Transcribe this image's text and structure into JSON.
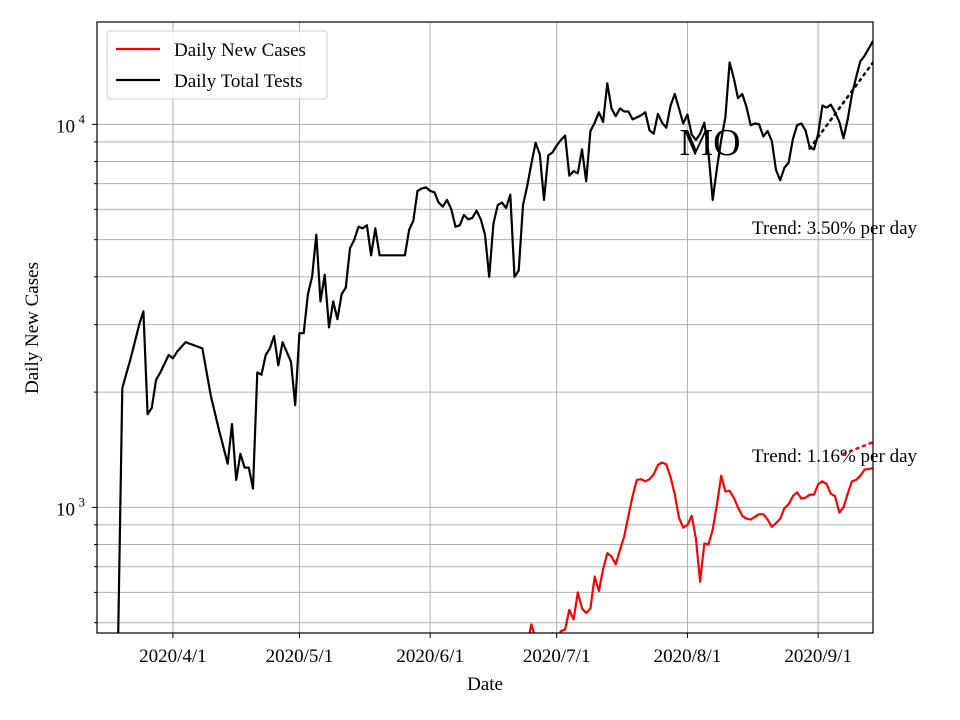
{
  "chart_data": {
    "type": "line",
    "title": "",
    "xlabel": "Date",
    "ylabel": "Daily New Cases",
    "yscale": "log",
    "ylim": [
      470,
      18500
    ],
    "xlim": [
      "2020-03-14",
      "2020-09-14"
    ],
    "x_ticks": [
      "2020/4/1",
      "2020/5/1",
      "2020/6/1",
      "2020/7/1",
      "2020/8/1",
      "2020/9/1"
    ],
    "y_ticks": [
      {
        "value": 1000,
        "base": "10",
        "exp": "3"
      },
      {
        "value": 10000,
        "base": "10",
        "exp": "4"
      }
    ],
    "grid": true,
    "legend_position": "top-left",
    "annotation_state": "MO",
    "series": [
      {
        "name": "Daily New Cases",
        "color": "#ff0000",
        "points": [
          [
            "2020-06-24",
            440
          ],
          [
            "2020-06-25",
            495
          ],
          [
            "2020-06-26",
            455
          ],
          [
            "2020-06-27",
            430
          ],
          [
            "2020-06-28",
            450
          ],
          [
            "2020-06-29",
            460
          ],
          [
            "2020-06-30",
            470
          ],
          [
            "2020-07-01",
            455
          ],
          [
            "2020-07-02",
            475
          ],
          [
            "2020-07-03",
            480
          ],
          [
            "2020-07-04",
            540
          ],
          [
            "2020-07-05",
            510
          ],
          [
            "2020-07-06",
            600
          ],
          [
            "2020-07-07",
            545
          ],
          [
            "2020-07-08",
            530
          ],
          [
            "2020-07-09",
            545
          ],
          [
            "2020-07-10",
            660
          ],
          [
            "2020-07-11",
            605
          ],
          [
            "2020-07-12",
            690
          ],
          [
            "2020-07-13",
            760
          ],
          [
            "2020-07-14",
            745
          ],
          [
            "2020-07-15",
            710
          ],
          [
            "2020-07-16",
            775
          ],
          [
            "2020-07-17",
            840
          ],
          [
            "2020-07-18",
            950
          ],
          [
            "2020-07-19",
            1070
          ],
          [
            "2020-07-20",
            1180
          ],
          [
            "2020-07-21",
            1185
          ],
          [
            "2020-07-22",
            1170
          ],
          [
            "2020-07-23",
            1185
          ],
          [
            "2020-07-24",
            1220
          ],
          [
            "2020-07-25",
            1290
          ],
          [
            "2020-07-26",
            1310
          ],
          [
            "2020-07-27",
            1295
          ],
          [
            "2020-07-28",
            1200
          ],
          [
            "2020-07-29",
            1080
          ],
          [
            "2020-07-30",
            940
          ],
          [
            "2020-07-31",
            885
          ],
          [
            "2020-08-01",
            900
          ],
          [
            "2020-08-02",
            950
          ],
          [
            "2020-08-03",
            830
          ],
          [
            "2020-08-04",
            640
          ],
          [
            "2020-08-05",
            805
          ],
          [
            "2020-08-06",
            800
          ],
          [
            "2020-08-07",
            875
          ],
          [
            "2020-08-08",
            1020
          ],
          [
            "2020-08-09",
            1210
          ],
          [
            "2020-08-10",
            1100
          ],
          [
            "2020-08-11",
            1105
          ],
          [
            "2020-08-12",
            1060
          ],
          [
            "2020-08-13",
            1000
          ],
          [
            "2020-08-14",
            950
          ],
          [
            "2020-08-15",
            935
          ],
          [
            "2020-08-16",
            930
          ],
          [
            "2020-08-17",
            945
          ],
          [
            "2020-08-18",
            960
          ],
          [
            "2020-08-19",
            960
          ],
          [
            "2020-08-20",
            930
          ],
          [
            "2020-08-21",
            890
          ],
          [
            "2020-08-22",
            910
          ],
          [
            "2020-08-23",
            935
          ],
          [
            "2020-08-24",
            995
          ],
          [
            "2020-08-25",
            1020
          ],
          [
            "2020-08-26",
            1070
          ],
          [
            "2020-08-27",
            1095
          ],
          [
            "2020-08-28",
            1055
          ],
          [
            "2020-08-29",
            1060
          ],
          [
            "2020-08-30",
            1080
          ],
          [
            "2020-08-31",
            1080
          ],
          [
            "2020-09-01",
            1150
          ],
          [
            "2020-09-02",
            1170
          ],
          [
            "2020-09-03",
            1150
          ],
          [
            "2020-09-04",
            1085
          ],
          [
            "2020-09-05",
            1070
          ],
          [
            "2020-09-06",
            970
          ],
          [
            "2020-09-07",
            1000
          ],
          [
            "2020-09-08",
            1085
          ],
          [
            "2020-09-09",
            1170
          ],
          [
            "2020-09-10",
            1180
          ],
          [
            "2020-09-11",
            1210
          ],
          [
            "2020-09-12",
            1255
          ],
          [
            "2020-09-14",
            1265
          ]
        ]
      },
      {
        "name": "Daily Total Tests",
        "color": "#000000",
        "points": [
          [
            "2020-03-19",
            450
          ],
          [
            "2020-03-20",
            2050
          ],
          [
            "2020-03-22",
            2450
          ],
          [
            "2020-03-24",
            3000
          ],
          [
            "2020-03-25",
            3250
          ],
          [
            "2020-03-26",
            1750
          ],
          [
            "2020-03-27",
            1820
          ],
          [
            "2020-03-28",
            2150
          ],
          [
            "2020-03-29",
            2250
          ],
          [
            "2020-03-31",
            2500
          ],
          [
            "2020-04-01",
            2450
          ],
          [
            "2020-04-02",
            2550
          ],
          [
            "2020-04-04",
            2700
          ],
          [
            "2020-04-08",
            2600
          ],
          [
            "2020-04-10",
            1950
          ],
          [
            "2020-04-12",
            1580
          ],
          [
            "2020-04-14",
            1300
          ],
          [
            "2020-04-15",
            1650
          ],
          [
            "2020-04-16",
            1180
          ],
          [
            "2020-04-17",
            1380
          ],
          [
            "2020-04-18",
            1270
          ],
          [
            "2020-04-19",
            1270
          ],
          [
            "2020-04-20",
            1120
          ],
          [
            "2020-04-21",
            2250
          ],
          [
            "2020-04-22",
            2220
          ],
          [
            "2020-04-23",
            2500
          ],
          [
            "2020-04-24",
            2600
          ],
          [
            "2020-04-25",
            2800
          ],
          [
            "2020-04-26",
            2350
          ],
          [
            "2020-04-27",
            2700
          ],
          [
            "2020-04-29",
            2400
          ],
          [
            "2020-04-30",
            1850
          ],
          [
            "2020-05-01",
            2850
          ],
          [
            "2020-05-02",
            2850
          ],
          [
            "2020-05-03",
            3600
          ],
          [
            "2020-05-04",
            4000
          ],
          [
            "2020-05-05",
            5150
          ],
          [
            "2020-05-06",
            3450
          ],
          [
            "2020-05-07",
            4050
          ],
          [
            "2020-05-08",
            2950
          ],
          [
            "2020-05-09",
            3450
          ],
          [
            "2020-05-10",
            3100
          ],
          [
            "2020-05-11",
            3600
          ],
          [
            "2020-05-12",
            3750
          ],
          [
            "2020-05-13",
            4750
          ],
          [
            "2020-05-14",
            5000
          ],
          [
            "2020-05-15",
            5400
          ],
          [
            "2020-05-16",
            5350
          ],
          [
            "2020-05-17",
            5450
          ],
          [
            "2020-05-18",
            4550
          ],
          [
            "2020-05-19",
            5350
          ],
          [
            "2020-05-20",
            4550
          ],
          [
            "2020-05-26",
            4550
          ],
          [
            "2020-05-27",
            5300
          ],
          [
            "2020-05-28",
            5600
          ],
          [
            "2020-05-29",
            6700
          ],
          [
            "2020-05-30",
            6800
          ],
          [
            "2020-05-31",
            6850
          ],
          [
            "2020-06-01",
            6700
          ],
          [
            "2020-06-02",
            6650
          ],
          [
            "2020-06-03",
            6250
          ],
          [
            "2020-06-04",
            6100
          ],
          [
            "2020-06-05",
            6350
          ],
          [
            "2020-06-06",
            6000
          ],
          [
            "2020-06-07",
            5400
          ],
          [
            "2020-06-08",
            5450
          ],
          [
            "2020-06-09",
            5800
          ],
          [
            "2020-06-10",
            5650
          ],
          [
            "2020-06-11",
            5700
          ],
          [
            "2020-06-12",
            5950
          ],
          [
            "2020-06-13",
            5650
          ],
          [
            "2020-06-14",
            5150
          ],
          [
            "2020-06-15",
            4000
          ],
          [
            "2020-06-16",
            5500
          ],
          [
            "2020-06-17",
            6150
          ],
          [
            "2020-06-18",
            6250
          ],
          [
            "2020-06-19",
            6050
          ],
          [
            "2020-06-20",
            6550
          ],
          [
            "2020-06-21",
            4000
          ],
          [
            "2020-06-22",
            4150
          ],
          [
            "2020-06-23",
            6150
          ],
          [
            "2020-06-24",
            6900
          ],
          [
            "2020-06-25",
            7900
          ],
          [
            "2020-06-26",
            8950
          ],
          [
            "2020-06-27",
            8350
          ],
          [
            "2020-06-28",
            6350
          ],
          [
            "2020-06-29",
            8300
          ],
          [
            "2020-06-30",
            8450
          ],
          [
            "2020-07-01",
            8800
          ],
          [
            "2020-07-02",
            9100
          ],
          [
            "2020-07-03",
            9350
          ],
          [
            "2020-07-04",
            7350
          ],
          [
            "2020-07-05",
            7550
          ],
          [
            "2020-07-06",
            7450
          ],
          [
            "2020-07-07",
            8600
          ],
          [
            "2020-07-08",
            7100
          ],
          [
            "2020-07-09",
            9600
          ],
          [
            "2020-07-10",
            10100
          ],
          [
            "2020-07-11",
            10750
          ],
          [
            "2020-07-12",
            10150
          ],
          [
            "2020-07-13",
            12800
          ],
          [
            "2020-07-14",
            11000
          ],
          [
            "2020-07-15",
            10500
          ],
          [
            "2020-07-16",
            11000
          ],
          [
            "2020-07-17",
            10800
          ],
          [
            "2020-07-18",
            10800
          ],
          [
            "2020-07-19",
            10300
          ],
          [
            "2020-07-21",
            10550
          ],
          [
            "2020-07-22",
            10750
          ],
          [
            "2020-07-23",
            9650
          ],
          [
            "2020-07-24",
            9450
          ],
          [
            "2020-07-25",
            10650
          ],
          [
            "2020-07-26",
            10100
          ],
          [
            "2020-07-27",
            9800
          ],
          [
            "2020-07-28",
            11200
          ],
          [
            "2020-07-29",
            12000
          ],
          [
            "2020-07-30",
            11000
          ],
          [
            "2020-07-31",
            10050
          ],
          [
            "2020-08-01",
            10600
          ],
          [
            "2020-08-02",
            9400
          ],
          [
            "2020-08-03",
            9100
          ],
          [
            "2020-08-04",
            9450
          ],
          [
            "2020-08-05",
            10100
          ],
          [
            "2020-08-06",
            8400
          ],
          [
            "2020-08-07",
            6350
          ],
          [
            "2020-08-08",
            7700
          ],
          [
            "2020-08-09",
            9100
          ],
          [
            "2020-08-10",
            10450
          ],
          [
            "2020-08-11",
            14500
          ],
          [
            "2020-08-12",
            13200
          ],
          [
            "2020-08-13",
            11700
          ],
          [
            "2020-08-14",
            12000
          ],
          [
            "2020-08-15",
            11100
          ],
          [
            "2020-08-16",
            9950
          ],
          [
            "2020-08-17",
            10050
          ],
          [
            "2020-08-18",
            10000
          ],
          [
            "2020-08-19",
            9300
          ],
          [
            "2020-08-20",
            9600
          ],
          [
            "2020-08-21",
            9050
          ],
          [
            "2020-08-22",
            7600
          ],
          [
            "2020-08-23",
            7150
          ],
          [
            "2020-08-24",
            7700
          ],
          [
            "2020-08-25",
            7950
          ],
          [
            "2020-08-26",
            9150
          ],
          [
            "2020-08-27",
            9950
          ],
          [
            "2020-08-28",
            10050
          ],
          [
            "2020-08-29",
            9650
          ],
          [
            "2020-08-30",
            8700
          ],
          [
            "2020-08-31",
            8600
          ],
          [
            "2020-09-01",
            9450
          ],
          [
            "2020-09-02",
            11200
          ],
          [
            "2020-09-03",
            11050
          ],
          [
            "2020-09-04",
            11250
          ],
          [
            "2020-09-05",
            10750
          ],
          [
            "2020-09-06",
            10150
          ],
          [
            "2020-09-07",
            9200
          ],
          [
            "2020-09-08",
            10300
          ],
          [
            "2020-09-09",
            11950
          ],
          [
            "2020-09-10",
            13250
          ],
          [
            "2020-09-11",
            14600
          ],
          [
            "2020-09-12",
            15100
          ],
          [
            "2020-09-14",
            16500
          ]
        ]
      }
    ],
    "trends": [
      {
        "label": "Trend: 1.16% per day",
        "color": "#ff0000",
        "from": [
          "2020-09-07",
          1380
        ],
        "to": [
          "2020-09-14",
          1480
        ]
      },
      {
        "label": "Trend: 3.50% per day",
        "color": "#000000",
        "from": [
          "2020-08-30",
          8650
        ],
        "to": [
          "2020-09-14",
          14500
        ]
      }
    ]
  }
}
